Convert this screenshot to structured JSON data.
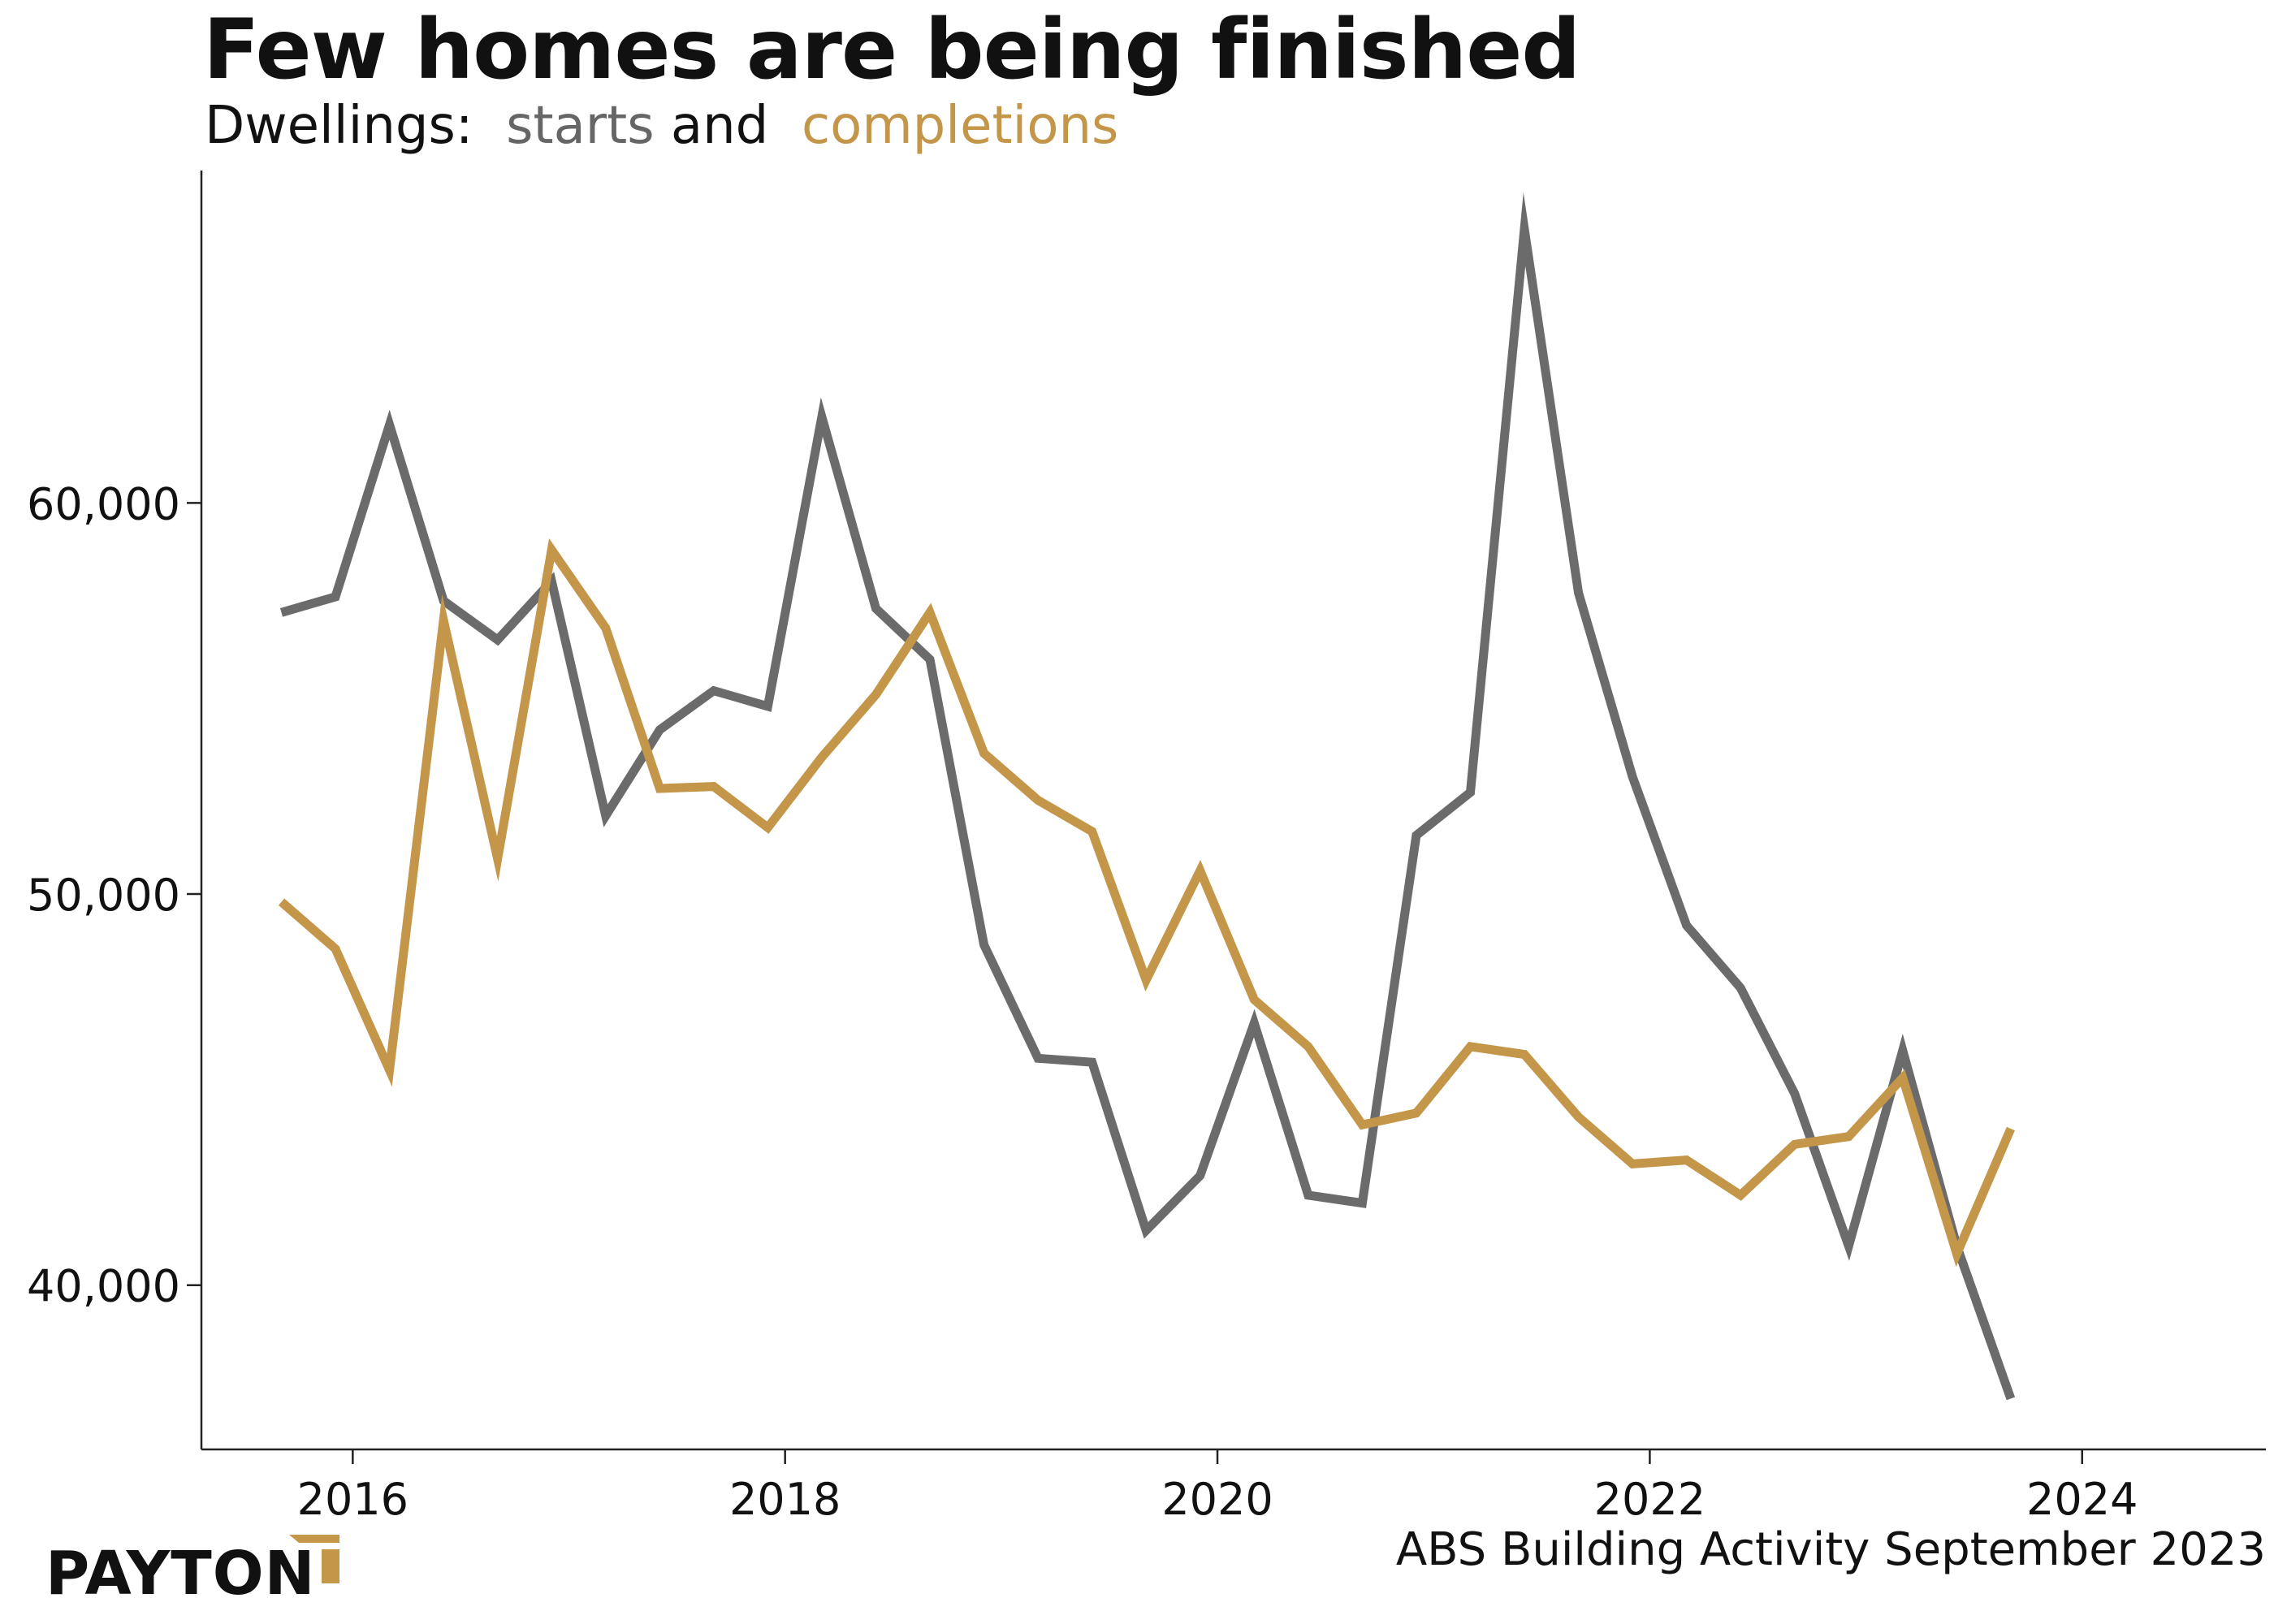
{
  "title": "Few homes are being finished",
  "subtitle": {
    "prefix": "Dwellings:",
    "starts_label": "starts",
    "and": "and",
    "completions_label": "completions"
  },
  "source": "ABS Building Activity September 2023",
  "logo": {
    "text": "PAYTON"
  },
  "colors": {
    "starts": "#6b6b6b",
    "completions": "#c4964a",
    "axis": "#222222"
  },
  "chart_data": {
    "type": "line",
    "title": "Few homes are being finished",
    "subtitle": "Dwellings: starts and completions",
    "xlabel": "",
    "ylabel": "",
    "xlim": [
      2015.3,
      2024.85
    ],
    "ylim": [
      35800,
      68500
    ],
    "x_ticks": [
      2016,
      2018,
      2020,
      2022,
      2024
    ],
    "x_tick_labels": [
      "2016",
      "2018",
      "2020",
      "2022",
      "2024"
    ],
    "y_ticks": [
      40000,
      50000,
      60000
    ],
    "y_tick_labels": [
      "40,000",
      "50,000",
      "60,000"
    ],
    "grid": false,
    "legend": "inline-subtitle",
    "x": [
      2015.67,
      2015.92,
      2016.17,
      2016.42,
      2016.67,
      2016.92,
      2017.17,
      2017.42,
      2017.67,
      2017.92,
      2018.17,
      2018.42,
      2018.67,
      2018.92,
      2019.17,
      2019.42,
      2019.67,
      2019.92,
      2020.17,
      2020.42,
      2020.67,
      2020.92,
      2021.17,
      2021.42,
      2021.67,
      2021.92,
      2022.17,
      2022.42,
      2022.67,
      2022.92,
      2023.17,
      2023.42,
      2023.67
    ],
    "series": [
      {
        "name": "starts",
        "values": [
          57200,
          57600,
          62000,
          57500,
          56500,
          58000,
          52000,
          54200,
          55200,
          54800,
          62200,
          57300,
          56000,
          48700,
          45800,
          45700,
          41400,
          42800,
          46700,
          42300,
          42100,
          51500,
          52600,
          67000,
          57700,
          53000,
          49200,
          47600,
          44900,
          41000,
          46000,
          41000,
          37100
        ]
      },
      {
        "name": "completions",
        "values": [
          49800,
          48600,
          45500,
          57000,
          50900,
          58800,
          56800,
          52700,
          52750,
          51700,
          53500,
          55100,
          57200,
          53600,
          52400,
          51600,
          47800,
          50600,
          47300,
          46100,
          44100,
          44400,
          46100,
          45900,
          44300,
          43100,
          43200,
          42300,
          43600,
          43800,
          45300,
          40800,
          44000
        ]
      }
    ]
  }
}
